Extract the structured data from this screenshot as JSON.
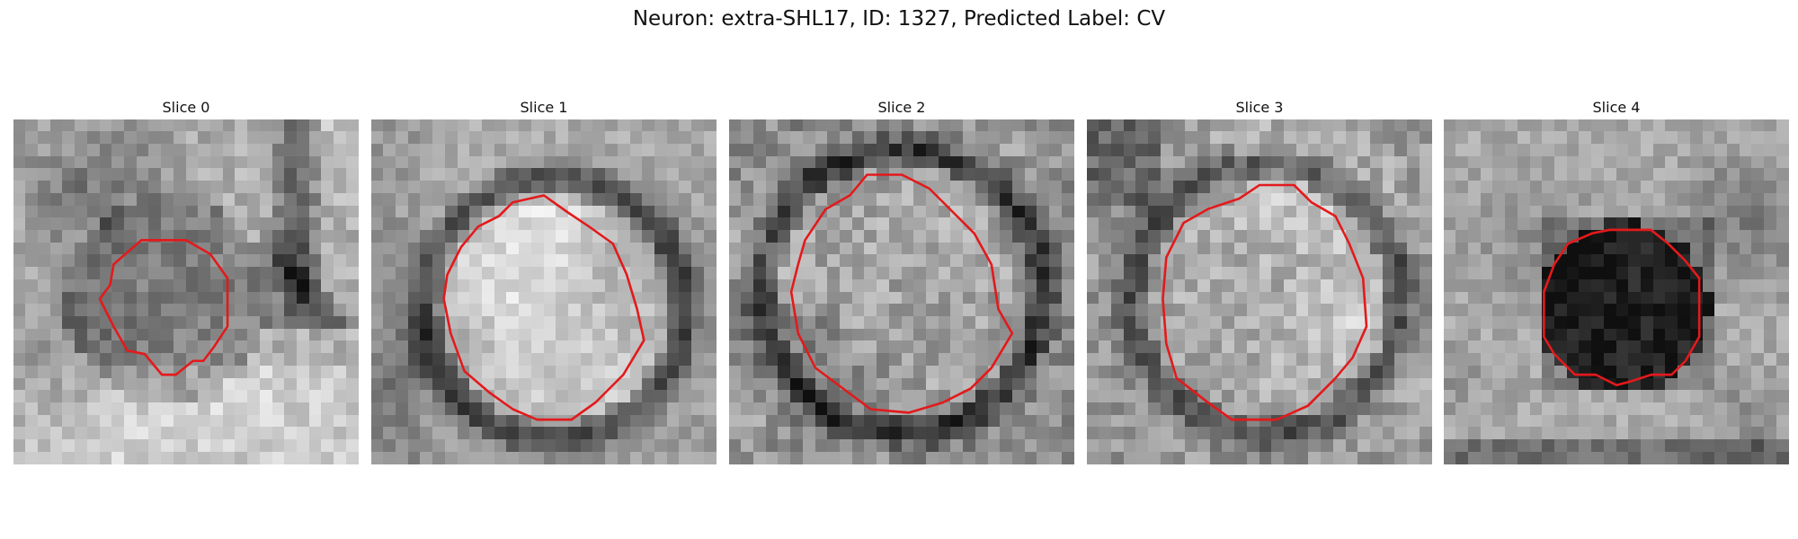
{
  "figure": {
    "title": "Neuron: extra-SHL17, ID: 1327, Predicted Label: CV"
  },
  "colors": {
    "contour": "#e31a1c",
    "background": "#ffffff"
  },
  "panels": [
    {
      "title": "Slice 0"
    },
    {
      "title": "Slice 1"
    },
    {
      "title": "Slice 2"
    },
    {
      "title": "Slice 3"
    },
    {
      "title": "Slice 4"
    }
  ]
}
